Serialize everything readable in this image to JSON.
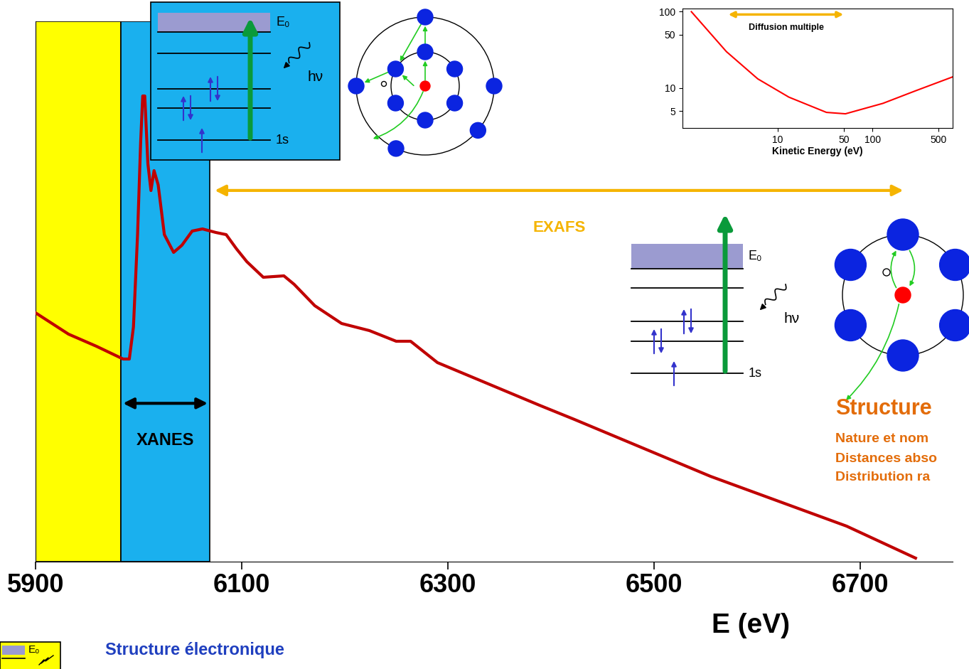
{
  "chart_data": [
    {
      "type": "line",
      "x": [
        5900,
        5932,
        5959,
        5985,
        5991,
        5995,
        5999,
        6002,
        6004,
        6006,
        6009,
        6012,
        6015,
        6019,
        6025,
        6034,
        6042,
        6052,
        6062,
        6075,
        6085,
        6095,
        6105,
        6121,
        6141,
        6151,
        6171,
        6197,
        6224,
        6250,
        6264,
        6290,
        6323,
        6356,
        6389,
        6423,
        6489,
        6555,
        6621,
        6687,
        6754
      ],
      "values": [
        3.5,
        3.2,
        3.03,
        2.85,
        2.85,
        3.3,
        4.6,
        5.9,
        6.55,
        6.55,
        5.6,
        5.22,
        5.5,
        5.3,
        4.6,
        4.35,
        4.45,
        4.65,
        4.68,
        4.63,
        4.6,
        4.4,
        4.22,
        4.0,
        4.02,
        3.9,
        3.6,
        3.35,
        3.25,
        3.1,
        3.1,
        2.8,
        2.6,
        2.4,
        2.2,
        2.0,
        1.6,
        1.2,
        0.85,
        0.5,
        0.05
      ],
      "color": "#c00000",
      "xlim": [
        5900,
        6790
      ],
      "ylim": [
        0,
        7.6
      ],
      "xticks": [
        5900,
        6100,
        6300,
        6500,
        6700
      ],
      "xlabel": "E (eV)",
      "tick_labels": "x",
      "regions": [
        {
          "x": [
            5900,
            5983
          ],
          "color": "#ffff00"
        },
        {
          "x": [
            5983,
            6069
          ],
          "color": "#1ab0ee",
          "label": "XANES"
        }
      ],
      "arrows": [
        {
          "x": [
            6072,
            6744
          ],
          "label": "EXAFS",
          "color": "#f5b400"
        }
      ]
    },
    {
      "type": "line",
      "x": [
        1.24,
        2.9,
        6.2,
        13.2,
        32.8,
        52,
        129,
        278,
        700
      ],
      "values": [
        100,
        30,
        13.2,
        7.6,
        4.8,
        4.6,
        6.3,
        9.1,
        14
      ],
      "color": "#ff0000",
      "log": true,
      "xlim": [
        1,
        700
      ],
      "ylim": [
        3,
        110
      ],
      "xticks": [
        10,
        50,
        100,
        500
      ],
      "yticks": [
        5,
        10,
        50,
        100
      ],
      "xlabel": "Kinetic Energy (eV)",
      "annotation": {
        "text": "Diffusion multiple",
        "x": [
          2.9,
          52
        ],
        "color": "#f5b400"
      }
    }
  ],
  "diagrams": [
    {
      "color": "#1ab0ee",
      "band": "E₀",
      "core": "1s",
      "photon": "hν"
    },
    {
      "band": "E₀",
      "core": "1s",
      "photon": "hν"
    },
    {
      "color": "#ffff00",
      "band": "E₀"
    }
  ],
  "texts": {
    "structure": {
      "title": "Structure",
      "lines": [
        "Nature et nom",
        "Distances abso",
        "Distribution ra"
      ],
      "color": "#e36c09"
    },
    "electronic": {
      "text": "Structure électronique",
      "color": "#1f3fbf"
    }
  }
}
